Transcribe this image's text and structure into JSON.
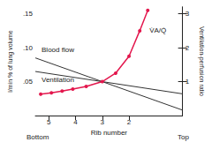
{
  "chart_data": {
    "type": "line",
    "x_label": "Rib number",
    "y_label": "l/min % of lung volume",
    "y2_label": "Ventilation-perfusion ratio",
    "annotations": [
      "Bottom",
      "Top"
    ],
    "xlim": [
      5.5,
      0
    ],
    "xticks": [
      5,
      4,
      3,
      2
    ],
    "ylim": [
      0,
      0.16
    ],
    "yticks": [
      {
        "value": 0.05,
        "label": ".05"
      },
      {
        "value": 0.1,
        "label": ".10"
      },
      {
        "value": 0.15,
        "label": ".15"
      }
    ],
    "y2lim": [
      0,
      3.2
    ],
    "y2ticks": [
      1,
      2,
      3
    ],
    "grid": false,
    "series": [
      {
        "name": "Blood flow",
        "color": "#333333",
        "marker": "none",
        "x": [
          5.5,
          0
        ],
        "values": [
          0.085,
          0.008
        ]
      },
      {
        "name": "Ventilation",
        "color": "#333333",
        "marker": "none",
        "x": [
          5.5,
          0
        ],
        "values": [
          0.065,
          0.032
        ]
      },
      {
        "name": "V̇A/Q̇",
        "color": "#e3174d",
        "marker": "circle",
        "axis": "y2",
        "x": [
          5.3,
          4.9,
          4.5,
          4.1,
          3.6,
          3.0,
          2.5,
          2.0,
          1.6,
          1.3
        ],
        "values": [
          0.63,
          0.67,
          0.72,
          0.78,
          0.86,
          1.0,
          1.25,
          1.75,
          2.5,
          3.1
        ]
      }
    ]
  }
}
